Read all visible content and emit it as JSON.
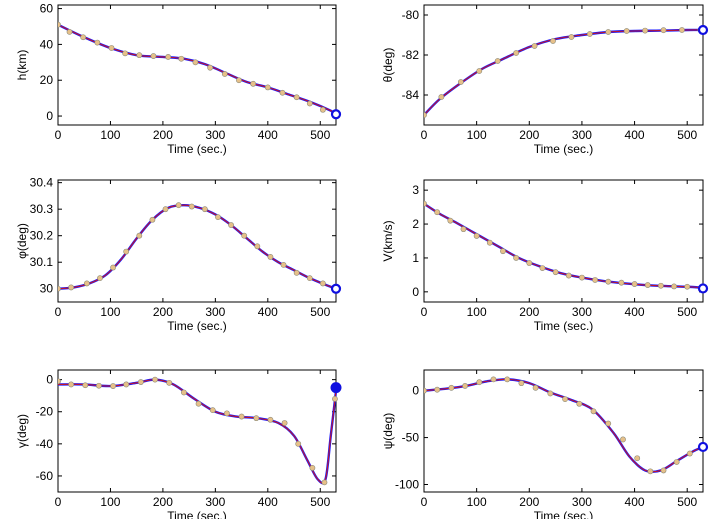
{
  "colors": {
    "line_blue": "#1a1aff",
    "line_red": "#c0152a",
    "marker_fill": "#e6c089",
    "marker_edge": "#8a8a7a",
    "endpoint": "#1010e0",
    "axes": "#000000"
  },
  "chart_data": [
    {
      "type": "line",
      "xlabel": "Time (sec.)",
      "ylabel": "h(km)",
      "xlim": [
        0,
        530
      ],
      "ylim": [
        -5,
        62
      ],
      "xticks": [
        0,
        100,
        200,
        300,
        400,
        500
      ],
      "yticks": [
        0,
        20,
        40,
        60
      ],
      "series": [
        {
          "x": [
            0,
            50,
            100,
            150,
            200,
            240,
            280,
            320,
            360,
            400,
            440,
            480,
            520,
            530
          ],
          "values": [
            51,
            44,
            38,
            34,
            33,
            32,
            29,
            24,
            19,
            16,
            12,
            8,
            3,
            1
          ]
        }
      ],
      "markers": [
        [
          0,
          51
        ],
        [
          22,
          47
        ],
        [
          48,
          44
        ],
        [
          75,
          41
        ],
        [
          102,
          38
        ],
        [
          128,
          35
        ],
        [
          155,
          34
        ],
        [
          182,
          33.5
        ],
        [
          210,
          33
        ],
        [
          235,
          32
        ],
        [
          262,
          30
        ],
        [
          290,
          27
        ],
        [
          318,
          23.5
        ],
        [
          345,
          20
        ],
        [
          372,
          18
        ],
        [
          400,
          16
        ],
        [
          428,
          13
        ],
        [
          455,
          10.5
        ],
        [
          480,
          7
        ],
        [
          505,
          3.5
        ],
        [
          528,
          1
        ]
      ],
      "endpoint": {
        "x": 530,
        "y": 1,
        "style": "ring"
      }
    },
    {
      "type": "line",
      "xlabel": "Time (sec.)",
      "ylabel": "θ(deg)",
      "xlim": [
        0,
        530
      ],
      "ylim": [
        -85.5,
        -79.5
      ],
      "xticks": [
        0,
        100,
        200,
        300,
        400,
        500
      ],
      "yticks": [
        -84,
        -82,
        -80
      ],
      "series": [
        {
          "x": [
            0,
            30,
            70,
            110,
            150,
            200,
            250,
            300,
            350,
            400,
            450,
            500,
            530
          ],
          "values": [
            -85.0,
            -84.2,
            -83.4,
            -82.7,
            -82.2,
            -81.6,
            -81.2,
            -81.0,
            -80.85,
            -80.8,
            -80.78,
            -80.75,
            -80.75
          ]
        }
      ],
      "markers": [
        [
          0,
          -85.0
        ],
        [
          33,
          -84.1
        ],
        [
          70,
          -83.35
        ],
        [
          105,
          -82.8
        ],
        [
          140,
          -82.3
        ],
        [
          175,
          -81.9
        ],
        [
          210,
          -81.55
        ],
        [
          245,
          -81.3
        ],
        [
          280,
          -81.1
        ],
        [
          315,
          -80.95
        ],
        [
          350,
          -80.85
        ],
        [
          385,
          -80.8
        ],
        [
          420,
          -80.78
        ],
        [
          455,
          -80.76
        ],
        [
          490,
          -80.75
        ],
        [
          525,
          -80.75
        ]
      ],
      "endpoint": {
        "x": 530,
        "y": -80.75,
        "style": "ring"
      }
    },
    {
      "type": "line",
      "xlabel": "Time (sec.)",
      "ylabel": "φ(deg)",
      "xlim": [
        0,
        530
      ],
      "ylim": [
        29.95,
        30.41
      ],
      "xticks": [
        0,
        100,
        200,
        300,
        400,
        500
      ],
      "yticks": [
        30,
        30.1,
        30.2,
        30.3,
        30.4
      ],
      "yticklabels": [
        "30",
        "30.1",
        "30.2",
        "30.3",
        "30.4"
      ],
      "series": [
        {
          "x": [
            0,
            30,
            60,
            90,
            120,
            150,
            180,
            210,
            240,
            270,
            300,
            330,
            360,
            390,
            420,
            450,
            480,
            510,
            530
          ],
          "values": [
            30.0,
            30.005,
            30.02,
            30.05,
            30.11,
            30.19,
            30.26,
            30.305,
            30.315,
            30.305,
            30.28,
            30.24,
            30.19,
            30.14,
            30.1,
            30.07,
            30.04,
            30.015,
            30.0
          ]
        }
      ],
      "markers": [
        [
          0,
          30.0
        ],
        [
          25,
          30.005
        ],
        [
          55,
          30.02
        ],
        [
          80,
          30.04
        ],
        [
          105,
          30.08
        ],
        [
          130,
          30.14
        ],
        [
          155,
          30.2
        ],
        [
          180,
          30.26
        ],
        [
          205,
          30.3
        ],
        [
          230,
          30.315
        ],
        [
          255,
          30.31
        ],
        [
          280,
          30.3
        ],
        [
          305,
          30.27
        ],
        [
          330,
          30.24
        ],
        [
          355,
          30.2
        ],
        [
          380,
          30.16
        ],
        [
          405,
          30.12
        ],
        [
          430,
          30.09
        ],
        [
          455,
          30.06
        ],
        [
          480,
          30.04
        ],
        [
          505,
          30.02
        ],
        [
          528,
          30.0
        ]
      ],
      "endpoint": {
        "x": 530,
        "y": 30.0,
        "style": "ring"
      }
    },
    {
      "type": "line",
      "xlabel": "Time (sec.)",
      "ylabel": "V(km/s)",
      "xlim": [
        0,
        530
      ],
      "ylim": [
        -0.3,
        3.3
      ],
      "xticks": [
        0,
        100,
        200,
        300,
        400,
        500
      ],
      "yticks": [
        0,
        1,
        2,
        3
      ],
      "series": [
        {
          "x": [
            0,
            30,
            60,
            100,
            140,
            180,
            220,
            260,
            300,
            340,
            380,
            420,
            460,
            500,
            530
          ],
          "values": [
            2.6,
            2.3,
            2.05,
            1.7,
            1.35,
            1.0,
            0.75,
            0.55,
            0.42,
            0.32,
            0.25,
            0.2,
            0.17,
            0.15,
            0.12
          ]
        }
      ],
      "markers": [
        [
          0,
          2.6
        ],
        [
          25,
          2.35
        ],
        [
          50,
          2.1
        ],
        [
          75,
          1.85
        ],
        [
          100,
          1.65
        ],
        [
          125,
          1.45
        ],
        [
          150,
          1.2
        ],
        [
          175,
          1.0
        ],
        [
          200,
          0.85
        ],
        [
          225,
          0.7
        ],
        [
          250,
          0.58
        ],
        [
          275,
          0.48
        ],
        [
          300,
          0.42
        ],
        [
          325,
          0.35
        ],
        [
          350,
          0.3
        ],
        [
          375,
          0.27
        ],
        [
          400,
          0.23
        ],
        [
          425,
          0.2
        ],
        [
          450,
          0.18
        ],
        [
          475,
          0.16
        ],
        [
          500,
          0.15
        ],
        [
          528,
          0.12
        ]
      ],
      "endpoint": {
        "x": 530,
        "y": 0.1,
        "style": "ring"
      }
    },
    {
      "type": "line",
      "xlabel": "Time (sec.)",
      "ylabel": "γ(deg)",
      "xlim": [
        0,
        530
      ],
      "ylim": [
        -70,
        6
      ],
      "xticks": [
        0,
        100,
        200,
        300,
        400,
        500
      ],
      "yticks": [
        -60,
        -40,
        -20,
        0
      ],
      "series": [
        {
          "x": [
            0,
            50,
            100,
            150,
            185,
            220,
            260,
            300,
            340,
            380,
            420,
            450,
            475,
            495,
            510,
            520,
            530
          ],
          "values": [
            -3,
            -3,
            -4,
            -2,
            0,
            -3,
            -12,
            -20,
            -23,
            -24,
            -27,
            -35,
            -50,
            -62,
            -62,
            -35,
            -7
          ]
        }
      ],
      "markers": [
        [
          0,
          -1
        ],
        [
          25,
          -3
        ],
        [
          52,
          -3.5
        ],
        [
          78,
          -3.8
        ],
        [
          105,
          -4
        ],
        [
          130,
          -3
        ],
        [
          158,
          -1.5
        ],
        [
          185,
          0
        ],
        [
          212,
          -2
        ],
        [
          240,
          -8
        ],
        [
          268,
          -15
        ],
        [
          295,
          -19
        ],
        [
          322,
          -21
        ],
        [
          350,
          -23
        ],
        [
          378,
          -24
        ],
        [
          405,
          -25
        ],
        [
          432,
          -27
        ],
        [
          458,
          -40
        ],
        [
          485,
          -55
        ],
        [
          508,
          -64
        ],
        [
          528,
          -12
        ]
      ],
      "endpoint": {
        "x": 530,
        "y": -5,
        "style": "filled"
      }
    },
    {
      "type": "line",
      "xlabel": "Time (sec.)",
      "ylabel": "ψ(deg)",
      "xlim": [
        0,
        530
      ],
      "ylim": [
        -108,
        22
      ],
      "xticks": [
        0,
        100,
        200,
        300,
        400,
        500
      ],
      "yticks": [
        -100,
        -50,
        0
      ],
      "series": [
        {
          "x": [
            0,
            40,
            80,
            120,
            160,
            200,
            240,
            280,
            320,
            360,
            390,
            420,
            450,
            480,
            510,
            530
          ],
          "values": [
            0,
            2,
            5,
            10,
            12,
            8,
            -2,
            -10,
            -20,
            -45,
            -70,
            -85,
            -85,
            -75,
            -65,
            -60
          ]
        }
      ],
      "markers": [
        [
          0,
          0
        ],
        [
          25,
          1
        ],
        [
          52,
          3
        ],
        [
          78,
          5
        ],
        [
          105,
          9
        ],
        [
          132,
          12
        ],
        [
          158,
          12
        ],
        [
          185,
          8
        ],
        [
          212,
          3
        ],
        [
          240,
          -3
        ],
        [
          268,
          -9
        ],
        [
          295,
          -14
        ],
        [
          322,
          -22
        ],
        [
          350,
          -35
        ],
        [
          378,
          -52
        ],
        [
          405,
          -72
        ],
        [
          430,
          -86
        ],
        [
          455,
          -85
        ],
        [
          480,
          -76
        ],
        [
          505,
          -67
        ],
        [
          528,
          -60
        ]
      ],
      "endpoint": {
        "x": 530,
        "y": -60,
        "style": "ring"
      }
    }
  ]
}
